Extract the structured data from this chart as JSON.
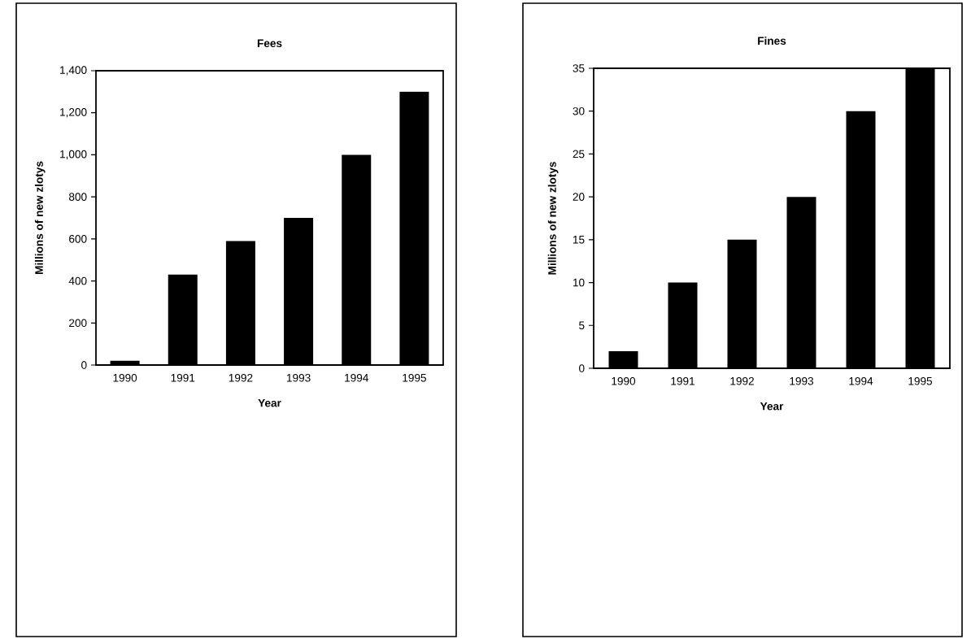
{
  "chart_data": [
    {
      "type": "bar",
      "title": "Fees",
      "xlabel": "Year",
      "ylabel": "Millions of new zlotys",
      "categories": [
        "1990",
        "1991",
        "1992",
        "1993",
        "1994",
        "1995"
      ],
      "values": [
        20,
        430,
        590,
        700,
        1000,
        1300
      ],
      "color": "#000000",
      "ylim": [
        0,
        1400
      ],
      "yticks": [
        0,
        200,
        400,
        600,
        800,
        {
          "value": 1000,
          "label": "1,000"
        },
        {
          "value": 1200,
          "label": "1,200"
        },
        {
          "value": 1400,
          "label": "1,400"
        }
      ]
    },
    {
      "type": "bar",
      "title": "Fines",
      "xlabel": "Year",
      "ylabel": "Millions of new zlotys",
      "categories": [
        "1990",
        "1991",
        "1992",
        "1993",
        "1994",
        "1995"
      ],
      "values": [
        2,
        10,
        15,
        20,
        30,
        35
      ],
      "color": "#000000",
      "ylim": [
        0,
        35
      ],
      "yticks": [
        0,
        5,
        10,
        15,
        20,
        25,
        30,
        35
      ]
    }
  ]
}
